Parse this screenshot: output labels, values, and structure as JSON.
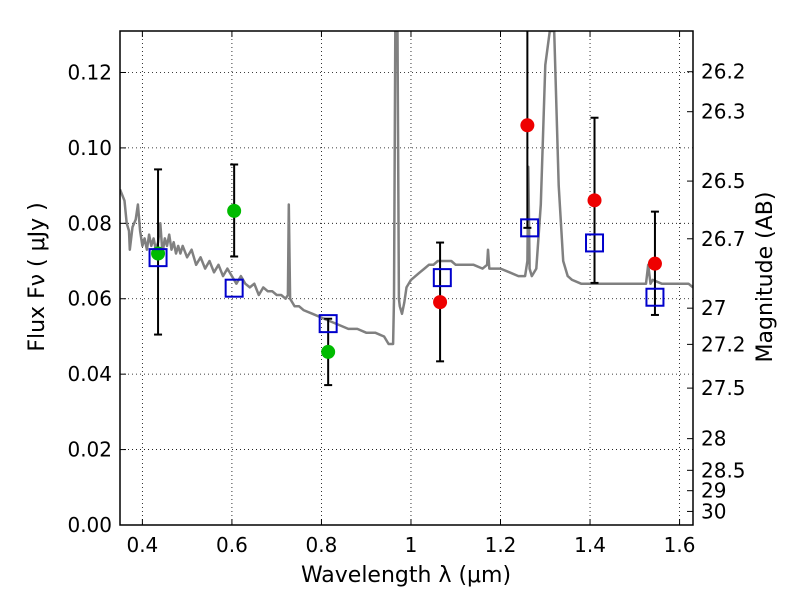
{
  "chart_data": {
    "type": "scatter",
    "xlabel": "Wavelength  λ (μm)",
    "ylabel": "Flux  Fν  ( μJy )",
    "y2label": "Magnitude (AB)",
    "xlim": [
      0.35,
      1.63
    ],
    "ylim": [
      0.0,
      0.131
    ],
    "grid": true,
    "x_ticks": [
      0.4,
      0.6,
      0.8,
      1.0,
      1.2,
      1.4,
      1.6
    ],
    "x_tick_labels": [
      "0.4",
      "0.6",
      "0.8",
      "1",
      "1.2",
      "1.4",
      "1.6"
    ],
    "y_ticks": [
      0.0,
      0.02,
      0.04,
      0.06,
      0.08,
      0.1,
      0.12
    ],
    "y_tick_labels": [
      "0.00",
      "0.02",
      "0.04",
      "0.06",
      "0.08",
      "0.10",
      "0.12"
    ],
    "mag_ticks": [
      {
        "label": "26.2",
        "flux": 0.1202
      },
      {
        "label": "26.3",
        "flux": 0.1096
      },
      {
        "label": "26.5",
        "flux": 0.0912
      },
      {
        "label": "26.7",
        "flux": 0.0759
      },
      {
        "label": "27",
        "flux": 0.0575
      },
      {
        "label": "27.2",
        "flux": 0.0479
      },
      {
        "label": "27.5",
        "flux": 0.0363
      },
      {
        "label": "28",
        "flux": 0.0229
      },
      {
        "label": "28.5",
        "flux": 0.0145
      },
      {
        "label": "29",
        "flux": 0.0091
      },
      {
        "label": "30",
        "flux": 0.0036
      }
    ],
    "colors": {
      "spectrum": "#808080",
      "green_points": "#00bb00",
      "red_points": "#ee0000",
      "model_squares": "#0000cc",
      "errorbars": "#000000"
    },
    "series": [
      {
        "kind": "line",
        "points": [
          [
            0.35,
            0.089
          ],
          [
            0.36,
            0.086
          ],
          [
            0.365,
            0.08
          ],
          [
            0.37,
            0.078
          ],
          [
            0.372,
            0.073
          ],
          [
            0.378,
            0.079
          ],
          [
            0.385,
            0.081
          ],
          [
            0.39,
            0.085
          ],
          [
            0.395,
            0.078
          ],
          [
            0.4,
            0.074
          ],
          [
            0.405,
            0.076
          ],
          [
            0.41,
            0.073
          ],
          [
            0.415,
            0.077
          ],
          [
            0.42,
            0.074
          ],
          [
            0.425,
            0.076
          ],
          [
            0.43,
            0.073
          ],
          [
            0.435,
            0.075
          ],
          [
            0.44,
            0.08
          ],
          [
            0.445,
            0.072
          ],
          [
            0.45,
            0.076
          ],
          [
            0.455,
            0.074
          ],
          [
            0.46,
            0.077
          ],
          [
            0.465,
            0.073
          ],
          [
            0.47,
            0.075
          ],
          [
            0.475,
            0.072
          ],
          [
            0.48,
            0.074
          ],
          [
            0.485,
            0.072
          ],
          [
            0.49,
            0.074
          ],
          [
            0.5,
            0.071
          ],
          [
            0.51,
            0.073
          ],
          [
            0.52,
            0.069
          ],
          [
            0.53,
            0.071
          ],
          [
            0.54,
            0.068
          ],
          [
            0.55,
            0.07
          ],
          [
            0.56,
            0.067
          ],
          [
            0.57,
            0.069
          ],
          [
            0.58,
            0.066
          ],
          [
            0.59,
            0.068
          ],
          [
            0.6,
            0.066
          ],
          [
            0.61,
            0.064
          ],
          [
            0.62,
            0.066
          ],
          [
            0.63,
            0.064
          ],
          [
            0.64,
            0.063
          ],
          [
            0.65,
            0.064
          ],
          [
            0.66,
            0.061
          ],
          [
            0.67,
            0.063
          ],
          [
            0.68,
            0.062
          ],
          [
            0.69,
            0.062
          ],
          [
            0.7,
            0.061
          ],
          [
            0.71,
            0.061
          ],
          [
            0.72,
            0.06
          ],
          [
            0.725,
            0.061
          ],
          [
            0.727,
            0.085
          ],
          [
            0.73,
            0.06
          ],
          [
            0.74,
            0.058
          ],
          [
            0.75,
            0.058
          ],
          [
            0.76,
            0.057
          ],
          [
            0.78,
            0.056
          ],
          [
            0.8,
            0.055
          ],
          [
            0.82,
            0.054
          ],
          [
            0.84,
            0.053
          ],
          [
            0.86,
            0.052
          ],
          [
            0.88,
            0.052
          ],
          [
            0.9,
            0.051
          ],
          [
            0.92,
            0.051
          ],
          [
            0.94,
            0.05
          ],
          [
            0.95,
            0.048
          ],
          [
            0.96,
            0.048
          ],
          [
            0.962,
            0.06
          ],
          [
            0.965,
            0.131
          ],
          [
            0.97,
            0.131
          ],
          [
            0.973,
            0.06
          ],
          [
            0.975,
            0.058
          ],
          [
            0.98,
            0.056
          ],
          [
            0.985,
            0.059
          ],
          [
            0.99,
            0.063
          ],
          [
            1.0,
            0.065
          ],
          [
            1.01,
            0.066
          ],
          [
            1.02,
            0.067
          ],
          [
            1.03,
            0.068
          ],
          [
            1.04,
            0.069
          ],
          [
            1.05,
            0.069
          ],
          [
            1.06,
            0.07
          ],
          [
            1.07,
            0.07
          ],
          [
            1.08,
            0.07
          ],
          [
            1.09,
            0.07
          ],
          [
            1.1,
            0.069
          ],
          [
            1.12,
            0.069
          ],
          [
            1.14,
            0.069
          ],
          [
            1.16,
            0.068
          ],
          [
            1.17,
            0.069
          ],
          [
            1.172,
            0.073
          ],
          [
            1.175,
            0.068
          ],
          [
            1.18,
            0.068
          ],
          [
            1.2,
            0.068
          ],
          [
            1.22,
            0.067
          ],
          [
            1.24,
            0.066
          ],
          [
            1.255,
            0.066
          ],
          [
            1.26,
            0.07
          ],
          [
            1.262,
            0.095
          ],
          [
            1.265,
            0.068
          ],
          [
            1.27,
            0.066
          ],
          [
            1.28,
            0.068
          ],
          [
            1.29,
            0.085
          ],
          [
            1.3,
            0.122
          ],
          [
            1.31,
            0.131
          ],
          [
            1.32,
            0.131
          ],
          [
            1.33,
            0.09
          ],
          [
            1.34,
            0.07
          ],
          [
            1.35,
            0.066
          ],
          [
            1.36,
            0.065
          ],
          [
            1.38,
            0.064
          ],
          [
            1.4,
            0.064
          ],
          [
            1.42,
            0.064
          ],
          [
            1.44,
            0.064
          ],
          [
            1.46,
            0.064
          ],
          [
            1.48,
            0.064
          ],
          [
            1.5,
            0.064
          ],
          [
            1.52,
            0.064
          ],
          [
            1.525,
            0.064
          ],
          [
            1.53,
            0.069
          ],
          [
            1.535,
            0.064
          ],
          [
            1.54,
            0.065
          ],
          [
            1.56,
            0.064
          ],
          [
            1.58,
            0.064
          ],
          [
            1.6,
            0.064
          ],
          [
            1.62,
            0.064
          ],
          [
            1.63,
            0.063
          ]
        ]
      },
      {
        "kind": "points_with_errors",
        "color_key": "green_points",
        "points": [
          {
            "x": 0.435,
            "y": 0.072,
            "ylo": 0.0505,
            "yhi": 0.0943
          },
          {
            "x": 0.605,
            "y": 0.0833,
            "ylo": 0.0712,
            "yhi": 0.0956
          },
          {
            "x": 0.815,
            "y": 0.0459,
            "ylo": 0.0371,
            "yhi": 0.0547
          }
        ]
      },
      {
        "kind": "points_with_errors",
        "color_key": "red_points",
        "points": [
          {
            "x": 1.065,
            "y": 0.0591,
            "ylo": 0.0434,
            "yhi": 0.0749
          },
          {
            "x": 1.26,
            "y": 0.106,
            "ylo": 0.0788,
            "yhi": 0.131
          },
          {
            "x": 1.41,
            "y": 0.0861,
            "ylo": 0.0642,
            "yhi": 0.108
          },
          {
            "x": 1.545,
            "y": 0.0693,
            "ylo": 0.0557,
            "yhi": 0.0831
          }
        ]
      },
      {
        "kind": "open_squares",
        "color_key": "model_squares",
        "points": [
          {
            "x": 0.435,
            "y": 0.0709
          },
          {
            "x": 0.605,
            "y": 0.0628
          },
          {
            "x": 0.815,
            "y": 0.0534
          },
          {
            "x": 1.07,
            "y": 0.0656
          },
          {
            "x": 1.265,
            "y": 0.0788
          },
          {
            "x": 1.41,
            "y": 0.0748
          },
          {
            "x": 1.545,
            "y": 0.0604
          }
        ]
      }
    ]
  }
}
